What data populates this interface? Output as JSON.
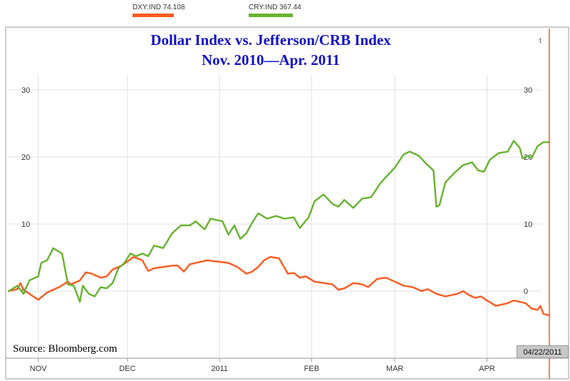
{
  "legend": [
    {
      "label": "DXY:IND 74.108",
      "color": "#ff5a1f"
    },
    {
      "label": "CRY:IND 367.44",
      "color": "#66b32e"
    }
  ],
  "title_line1": "Dollar Index vs. Jefferson/CRB Index",
  "title_line2": "Nov. 2010—Apr. 2011",
  "source": "Source: Bloomberg.com",
  "date_tag": "04/22/2011",
  "corner_mark": "t",
  "colors": {
    "dxy": "#ff5a1f",
    "cry": "#66b32e",
    "cursor": "#ff5a1f",
    "grid": "#e0e0e0",
    "title": "#1010cc"
  },
  "chart_data": {
    "type": "line",
    "title": "Dollar Index vs. Jefferson/CRB Index",
    "subtitle": "Nov. 2010—Apr. 2011",
    "xlabel": "",
    "ylabel": "",
    "x_ticks": [
      "NOV",
      "DEC",
      "2011",
      "FEB",
      "MAR",
      "APR"
    ],
    "x_tick_dates": [
      "2010-11-01",
      "2010-12-01",
      "2011-01-01",
      "2011-02-01",
      "2011-03-01",
      "2011-04-01"
    ],
    "y_ticks_left": [
      "30",
      "20",
      "10",
      "0"
    ],
    "y_ticks_right": [
      "30",
      "20",
      "10",
      "0"
    ],
    "y_tick_values": [
      30,
      20,
      10,
      0
    ],
    "ylim": [
      -4.5,
      33
    ],
    "xlim": [
      "2010-10-22",
      "2011-04-22"
    ],
    "grid": true,
    "legend_position": "top",
    "series": [
      {
        "name": "DXY:IND 74.108",
        "color": "#ff5a1f",
        "points": [
          [
            "2010-10-22",
            0.0
          ],
          [
            "2010-10-25",
            0.3
          ],
          [
            "2010-10-26",
            1.2
          ],
          [
            "2010-10-27",
            0.2
          ],
          [
            "2010-10-29",
            -0.4
          ],
          [
            "2010-11-01",
            -1.3
          ],
          [
            "2010-11-04",
            -0.2
          ],
          [
            "2010-11-08",
            0.6
          ],
          [
            "2010-11-11",
            1.4
          ],
          [
            "2010-11-12",
            1.0
          ],
          [
            "2010-11-15",
            1.6
          ],
          [
            "2010-11-17",
            2.8
          ],
          [
            "2010-11-19",
            2.6
          ],
          [
            "2010-11-22",
            2.0
          ],
          [
            "2010-11-24",
            2.2
          ],
          [
            "2010-11-26",
            3.2
          ],
          [
            "2010-11-29",
            3.8
          ],
          [
            "2010-12-01",
            4.4
          ],
          [
            "2010-12-03",
            5.1
          ],
          [
            "2010-12-06",
            4.6
          ],
          [
            "2010-12-08",
            3.0
          ],
          [
            "2010-12-10",
            3.4
          ],
          [
            "2010-12-13",
            3.6
          ],
          [
            "2010-12-16",
            3.8
          ],
          [
            "2010-12-18",
            3.8
          ],
          [
            "2010-12-20",
            2.9
          ],
          [
            "2010-12-22",
            4.0
          ],
          [
            "2010-12-24",
            4.2
          ],
          [
            "2010-12-28",
            4.6
          ],
          [
            "2010-12-31",
            4.4
          ],
          [
            "2011-01-04",
            4.2
          ],
          [
            "2011-01-07",
            3.6
          ],
          [
            "2011-01-10",
            2.6
          ],
          [
            "2011-01-12",
            2.9
          ],
          [
            "2011-01-14",
            3.6
          ],
          [
            "2011-01-16",
            4.6
          ],
          [
            "2011-01-18",
            5.1
          ],
          [
            "2011-01-21",
            4.9
          ],
          [
            "2011-01-24",
            2.6
          ],
          [
            "2011-01-26",
            2.7
          ],
          [
            "2011-01-28",
            2.0
          ],
          [
            "2011-01-30",
            2.2
          ],
          [
            "2011-02-02",
            1.4
          ],
          [
            "2011-02-05",
            1.2
          ],
          [
            "2011-02-08",
            1.0
          ],
          [
            "2011-02-10",
            0.2
          ],
          [
            "2011-02-12",
            0.4
          ],
          [
            "2011-02-15",
            1.2
          ],
          [
            "2011-02-18",
            1.0
          ],
          [
            "2011-02-20",
            0.6
          ],
          [
            "2011-02-23",
            1.8
          ],
          [
            "2011-02-26",
            2.0
          ],
          [
            "2011-03-01",
            1.4
          ],
          [
            "2011-03-04",
            0.8
          ],
          [
            "2011-03-07",
            0.6
          ],
          [
            "2011-03-10",
            0.0
          ],
          [
            "2011-03-12",
            0.3
          ],
          [
            "2011-03-15",
            -0.4
          ],
          [
            "2011-03-18",
            -0.8
          ],
          [
            "2011-03-22",
            -0.4
          ],
          [
            "2011-03-24",
            0.0
          ],
          [
            "2011-03-26",
            -0.6
          ],
          [
            "2011-03-28",
            -1.0
          ],
          [
            "2011-03-30",
            -0.8
          ],
          [
            "2011-04-01",
            -1.4
          ],
          [
            "2011-04-04",
            -2.2
          ],
          [
            "2011-04-06",
            -2.0
          ],
          [
            "2011-04-08",
            -1.8
          ],
          [
            "2011-04-10",
            -1.4
          ],
          [
            "2011-04-12",
            -1.6
          ],
          [
            "2011-04-14",
            -1.8
          ],
          [
            "2011-04-16",
            -2.6
          ],
          [
            "2011-04-18",
            -2.8
          ],
          [
            "2011-04-19",
            -2.2
          ],
          [
            "2011-04-20",
            -3.4
          ],
          [
            "2011-04-22",
            -3.6
          ]
        ]
      },
      {
        "name": "CRY:IND 367.44",
        "color": "#66b32e",
        "points": [
          [
            "2010-10-22",
            0.0
          ],
          [
            "2010-10-25",
            0.8
          ],
          [
            "2010-10-27",
            -0.4
          ],
          [
            "2010-10-29",
            1.6
          ],
          [
            "2010-11-01",
            2.2
          ],
          [
            "2010-11-02",
            4.2
          ],
          [
            "2010-11-04",
            4.6
          ],
          [
            "2010-11-06",
            6.4
          ],
          [
            "2010-11-09",
            5.6
          ],
          [
            "2010-11-11",
            1.0
          ],
          [
            "2010-11-13",
            0.8
          ],
          [
            "2010-11-15",
            -1.6
          ],
          [
            "2010-11-16",
            0.8
          ],
          [
            "2010-11-18",
            -0.4
          ],
          [
            "2010-11-20",
            -0.8
          ],
          [
            "2010-11-22",
            0.6
          ],
          [
            "2010-11-24",
            0.4
          ],
          [
            "2010-11-26",
            1.2
          ],
          [
            "2010-11-28",
            3.4
          ],
          [
            "2010-11-30",
            4.2
          ],
          [
            "2010-12-02",
            5.6
          ],
          [
            "2010-12-04",
            5.2
          ],
          [
            "2010-12-06",
            5.6
          ],
          [
            "2010-12-08",
            5.2
          ],
          [
            "2010-12-10",
            6.8
          ],
          [
            "2010-12-13",
            6.4
          ],
          [
            "2010-12-16",
            8.6
          ],
          [
            "2010-12-19",
            9.8
          ],
          [
            "2010-12-22",
            9.8
          ],
          [
            "2010-12-24",
            10.4
          ],
          [
            "2010-12-27",
            9.2
          ],
          [
            "2010-12-29",
            10.8
          ],
          [
            "2011-01-02",
            10.4
          ],
          [
            "2011-01-04",
            8.4
          ],
          [
            "2011-01-06",
            9.8
          ],
          [
            "2011-01-08",
            7.8
          ],
          [
            "2011-01-10",
            8.6
          ],
          [
            "2011-01-12",
            10.2
          ],
          [
            "2011-01-14",
            11.6
          ],
          [
            "2011-01-17",
            10.8
          ],
          [
            "2011-01-20",
            11.2
          ],
          [
            "2011-01-23",
            10.8
          ],
          [
            "2011-01-26",
            11.0
          ],
          [
            "2011-01-28",
            9.4
          ],
          [
            "2011-01-31",
            11.0
          ],
          [
            "2011-02-02",
            13.4
          ],
          [
            "2011-02-05",
            14.4
          ],
          [
            "2011-02-08",
            13.0
          ],
          [
            "2011-02-10",
            12.6
          ],
          [
            "2011-02-12",
            13.6
          ],
          [
            "2011-02-15",
            12.4
          ],
          [
            "2011-02-18",
            13.8
          ],
          [
            "2011-02-21",
            14.0
          ],
          [
            "2011-02-24",
            16.0
          ],
          [
            "2011-02-26",
            17.0
          ],
          [
            "2011-03-01",
            18.4
          ],
          [
            "2011-03-04",
            20.4
          ],
          [
            "2011-03-06",
            20.8
          ],
          [
            "2011-03-09",
            20.2
          ],
          [
            "2011-03-12",
            18.8
          ],
          [
            "2011-03-14",
            18.0
          ],
          [
            "2011-03-15",
            12.6
          ],
          [
            "2011-03-16",
            12.8
          ],
          [
            "2011-03-18",
            16.2
          ],
          [
            "2011-03-21",
            17.6
          ],
          [
            "2011-03-24",
            18.8
          ],
          [
            "2011-03-27",
            19.2
          ],
          [
            "2011-03-29",
            18.0
          ],
          [
            "2011-03-31",
            17.8
          ],
          [
            "2011-04-02",
            19.6
          ],
          [
            "2011-04-05",
            20.6
          ],
          [
            "2011-04-08",
            20.8
          ],
          [
            "2011-04-10",
            22.4
          ],
          [
            "2011-04-12",
            21.4
          ],
          [
            "2011-04-13",
            19.8
          ],
          [
            "2011-04-15",
            20.2
          ],
          [
            "2011-04-16",
            19.8
          ],
          [
            "2011-04-18",
            21.6
          ],
          [
            "2011-04-20",
            22.2
          ],
          [
            "2011-04-22",
            22.2
          ]
        ]
      }
    ]
  }
}
